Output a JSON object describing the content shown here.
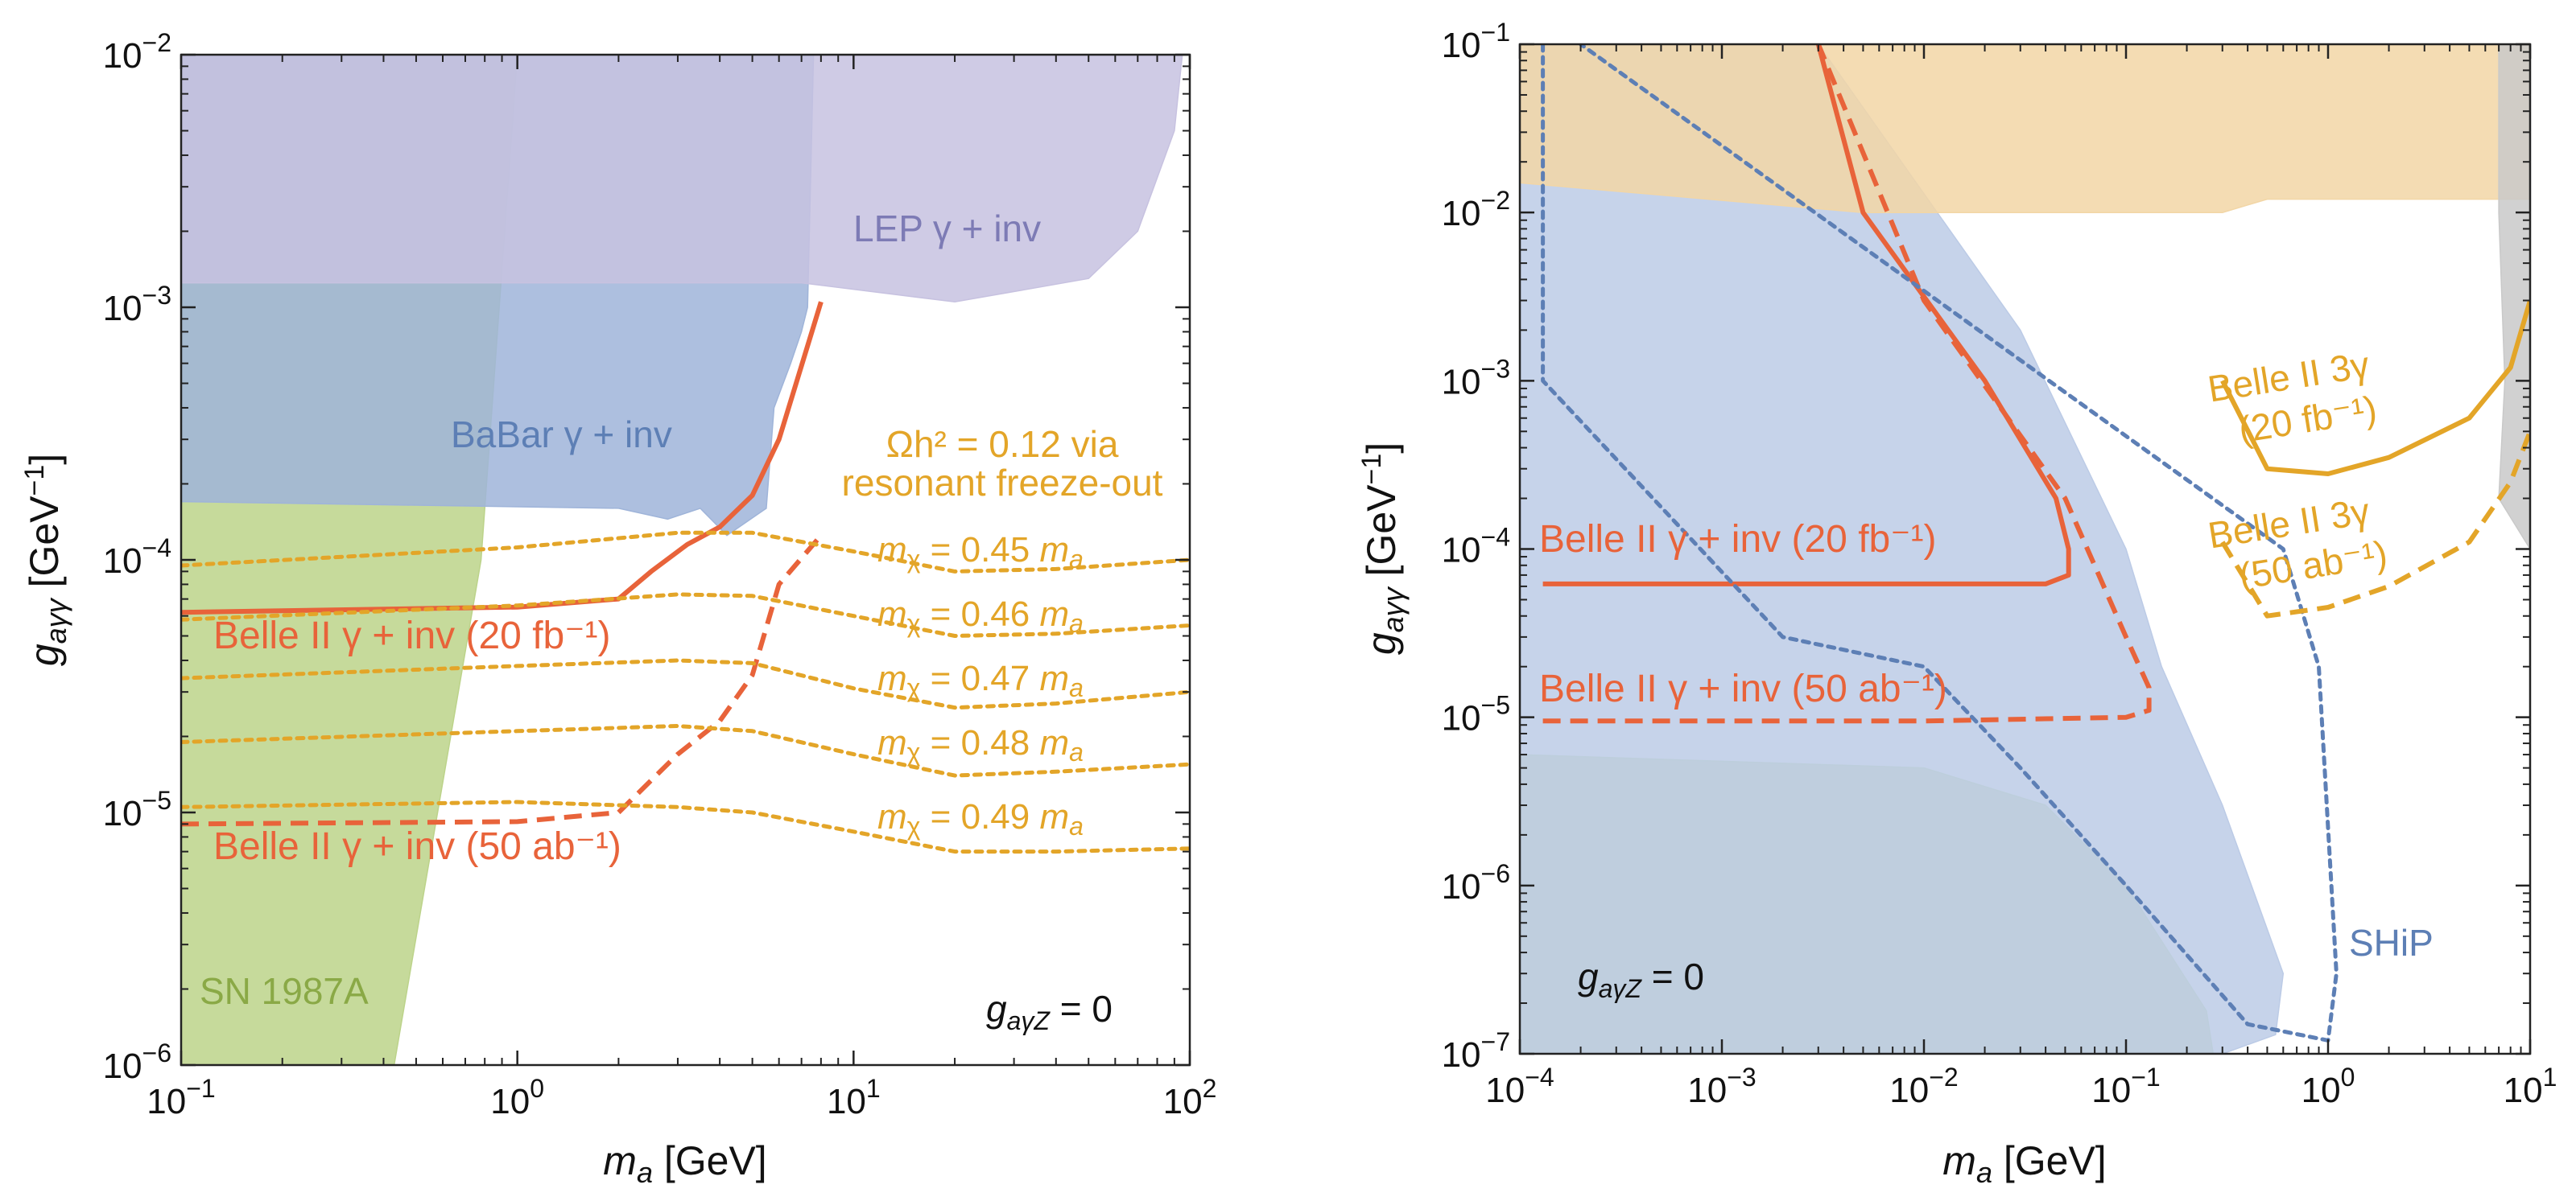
{
  "chart_data": [
    {
      "type": "area",
      "panel": "left",
      "xlabel": "m_a [GeV]",
      "ylabel": "g_aγγ [GeV^-1]",
      "xscale": "log",
      "yscale": "log",
      "xlim": [
        0.1,
        100
      ],
      "ylim": [
        1e-06,
        0.01
      ],
      "x_ticks": [
        "10^-1",
        "10^0",
        "10^1",
        "10^2"
      ],
      "y_ticks": [
        "10^-6",
        "10^-5",
        "10^-4",
        "10^-3",
        "10^-2"
      ],
      "annotation": "g_aγZ = 0",
      "regions": [
        {
          "name": "SN 1987A",
          "color": "#bcd38a",
          "polygon": [
            [
              0.1,
              1e-06
            ],
            [
              0.43,
              1e-06
            ],
            [
              0.78,
              0.0001
            ],
            [
              1.0,
              0.01
            ],
            [
              0.1,
              0.01
            ]
          ]
        },
        {
          "name": "BaBar γ + inv",
          "color": "#9fb4d9",
          "polygon": [
            [
              0.1,
              0.00017
            ],
            [
              2.0,
              0.00016
            ],
            [
              2.8,
              0.000145
            ],
            [
              3.5,
              0.00016
            ],
            [
              4.2,
              0.000125
            ],
            [
              5.5,
              0.00016
            ],
            [
              5.8,
              0.0004
            ],
            [
              6.5,
              0.0006
            ],
            [
              7.0,
              0.0008
            ],
            [
              7.3,
              0.001
            ],
            [
              7.6,
              0.01
            ],
            [
              0.1,
              0.01
            ]
          ]
        },
        {
          "name": "LEP γ + inv",
          "color": "#c7c2e0",
          "polygon": [
            [
              0.1,
              0.00125
            ],
            [
              7.0,
              0.00125
            ],
            [
              20,
              0.00105
            ],
            [
              50,
              0.0013
            ],
            [
              70,
              0.002
            ],
            [
              90,
              0.005
            ],
            [
              95,
              0.01
            ],
            [
              0.1,
              0.01
            ]
          ]
        }
      ],
      "series": [
        {
          "name": "Belle II γ + inv (20 fb^-1)",
          "style": "solid",
          "color": "#e8633a",
          "x": [
            0.1,
            1.0,
            2.0,
            2.5,
            3.2,
            4.0,
            5.0,
            6.0,
            8.0
          ],
          "y": [
            6.2e-05,
            6.5e-05,
            7e-05,
            9e-05,
            0.000115,
            0.000135,
            0.00018,
            0.0003,
            0.00105
          ]
        },
        {
          "name": "Belle II γ + inv (50 ab^-1)",
          "style": "dashed",
          "color": "#e8633a",
          "x": [
            0.1,
            1.0,
            2.0,
            3.0,
            4.0,
            5.0,
            6.0,
            8.0
          ],
          "y": [
            9e-06,
            9.2e-06,
            1e-05,
            1.7e-05,
            2.3e-05,
            3.5e-05,
            8e-05,
            0.000125
          ]
        },
        {
          "name": "m_χ = 0.45 m_a",
          "style": "dotted",
          "color": "#e3a528",
          "x": [
            0.1,
            1,
            3,
            5,
            10,
            20,
            40,
            100
          ],
          "y": [
            9.5e-05,
            0.000112,
            0.000128,
            0.000128,
            0.000108,
            9e-05,
            9.2e-05,
            0.0001
          ]
        },
        {
          "name": "m_χ = 0.46 m_a",
          "style": "dotted",
          "color": "#e3a528",
          "x": [
            0.1,
            1,
            3,
            5,
            10,
            20,
            40,
            100
          ],
          "y": [
            5.8e-05,
            6.6e-05,
            7.3e-05,
            7.2e-05,
            6e-05,
            5e-05,
            5.1e-05,
            5.5e-05
          ]
        },
        {
          "name": "m_χ = 0.47 m_a",
          "style": "dotted",
          "color": "#e3a528",
          "x": [
            0.1,
            1,
            3,
            5,
            10,
            20,
            40,
            100
          ],
          "y": [
            3.4e-05,
            3.8e-05,
            4e-05,
            3.9e-05,
            3.1e-05,
            2.6e-05,
            2.7e-05,
            3e-05
          ]
        },
        {
          "name": "m_χ = 0.48 m_a",
          "style": "dotted",
          "color": "#e3a528",
          "x": [
            0.1,
            1,
            3,
            5,
            10,
            20,
            40,
            100
          ],
          "y": [
            1.9e-05,
            2.1e-05,
            2.2e-05,
            2.1e-05,
            1.7e-05,
            1.4e-05,
            1.45e-05,
            1.55e-05
          ]
        },
        {
          "name": "m_χ = 0.49 m_a",
          "style": "dotted",
          "color": "#e3a528",
          "x": [
            0.1,
            1,
            3,
            5,
            10,
            20,
            40,
            100
          ],
          "y": [
            1.05e-05,
            1.1e-05,
            1.05e-05,
            1e-05,
            8.4e-06,
            7e-06,
            7e-06,
            7.2e-06
          ]
        }
      ],
      "labels": {
        "sn": "SN 1987A",
        "babar": "BaBar γ + inv",
        "lep": "LEP γ + inv",
        "relic_line1": "Ωh² = 0.12 via",
        "relic_line2": "resonant freeze-out",
        "mx45": "0.45",
        "mx46": "0.46",
        "mx47": "0.47",
        "mx48": "0.48",
        "mx49": "0.49",
        "belle20": "Belle II γ + inv (20 fb⁻¹)",
        "belle50": "Belle II γ + inv (50 ab⁻¹)"
      }
    },
    {
      "type": "area",
      "panel": "right",
      "xlabel": "m_a [GeV]",
      "ylabel": "g_aγγ [GeV^-1]",
      "xscale": "log",
      "yscale": "log",
      "xlim": [
        0.0001,
        10
      ],
      "ylim": [
        1e-07,
        0.1
      ],
      "x_ticks": [
        "10^-4",
        "10^-3",
        "10^-2",
        "10^-1",
        "10^0",
        "10^1"
      ],
      "y_ticks": [
        "10^-7",
        "10^-6",
        "10^-5",
        "10^-4",
        "10^-3",
        "10^-2",
        "10^-1"
      ],
      "annotation": "g_aγZ = 0",
      "regions": [
        {
          "name": "green (SN-like)",
          "color": "#c4d9a2",
          "polygon": [
            [
              0.0001,
              1e-07
            ],
            [
              0.27,
              1e-07
            ],
            [
              0.25,
              1.8e-07
            ],
            [
              0.1,
              1e-06
            ],
            [
              0.04,
              3e-06
            ],
            [
              0.01,
              5e-06
            ],
            [
              0.0001,
              6e-06
            ]
          ]
        },
        {
          "name": "blue band",
          "color": "#bccbe6",
          "polygon": [
            [
              0.0001,
              0.1
            ],
            [
              0.003,
              0.1
            ],
            [
              0.03,
              0.002
            ],
            [
              0.1,
              0.0001
            ],
            [
              0.15,
              2e-05
            ],
            [
              0.3,
              3e-06
            ],
            [
              0.6,
              3e-07
            ],
            [
              0.55,
              1.3e-07
            ],
            [
              0.3,
              1e-07
            ],
            [
              0.0001,
              1e-07
            ]
          ]
        },
        {
          "name": "orange band (top)",
          "color": "#f2d6a6",
          "polygon": [
            [
              0.0001,
              0.1
            ],
            [
              10,
              0.1
            ],
            [
              10,
              0.012
            ],
            [
              0.5,
              0.012
            ],
            [
              0.3,
              0.01
            ],
            [
              0.005,
              0.01
            ],
            [
              0.0001,
              0.015
            ]
          ]
        },
        {
          "name": "grey strip",
          "color": "#c9c9c9",
          "polygon": [
            [
              7,
              0.1
            ],
            [
              10,
              0.1
            ],
            [
              10,
              0.0001
            ],
            [
              7,
              0.0002
            ],
            [
              7.5,
              0.001
            ],
            [
              7,
              0.01
            ]
          ]
        }
      ],
      "series": [
        {
          "name": "Belle II γ + inv (20 fb^-1)",
          "style": "solid",
          "color": "#e8633a",
          "x": [
            0.00013,
            0.01,
            0.04,
            0.052,
            0.052,
            0.045,
            0.02,
            0.005,
            0.003
          ],
          "y": [
            6.2e-05,
            6.2e-05,
            6.2e-05,
            7e-05,
            0.0001,
            0.0002,
            0.001,
            0.01,
            0.1
          ]
        },
        {
          "name": "Belle II γ + inv (50 ab^-1)",
          "style": "dashed",
          "color": "#e8633a",
          "x": [
            0.00013,
            0.01,
            0.1,
            0.13,
            0.13,
            0.1,
            0.05,
            0.01,
            0.003
          ],
          "y": [
            9.5e-06,
            9.5e-06,
            1e-05,
            1.1e-05,
            1.5e-05,
            3e-05,
            0.0002,
            0.003,
            0.1
          ]
        },
        {
          "name": "SHiP",
          "style": "dotted",
          "color": "#5d7fb5",
          "x": [
            0.00013,
            0.00013,
            0.002,
            0.01,
            0.03,
            0.1,
            0.4,
            1.0,
            1.1,
            0.9,
            0.6,
            0.0002
          ],
          "y": [
            0.1,
            0.001,
            3e-05,
            2e-05,
            5e-06,
            1e-06,
            1.5e-07,
            1.2e-07,
            3e-07,
            2e-05,
            0.0001,
            0.1
          ]
        },
        {
          "name": "Belle II 3γ (20 fb^-1)",
          "style": "solid",
          "color": "#e3a528",
          "x": [
            0.3,
            0.5,
            1.0,
            2.0,
            5.0,
            8.0,
            10
          ],
          "y": [
            0.001,
            0.0003,
            0.00028,
            0.00035,
            0.0006,
            0.0012,
            0.003
          ]
        },
        {
          "name": "Belle II 3γ (50 ab^-1)",
          "style": "dashed",
          "color": "#e3a528",
          "x": [
            0.3,
            0.5,
            1.0,
            2.0,
            5.0,
            8.0,
            10
          ],
          "y": [
            0.00011,
            4e-05,
            4.5e-05,
            6e-05,
            0.00011,
            0.00025,
            0.0005
          ]
        }
      ],
      "labels": {
        "belle20": "Belle II γ + inv (20 fb⁻¹)",
        "belle50": "Belle II γ + inv (50 ab⁻¹)",
        "ship": "SHiP",
        "b3g_a": "Belle II 3γ",
        "b3g_a2": "(20 fb⁻¹)",
        "b3g_b": "Belle II 3γ",
        "b3g_b2": "(50 ab⁻¹)"
      }
    }
  ]
}
